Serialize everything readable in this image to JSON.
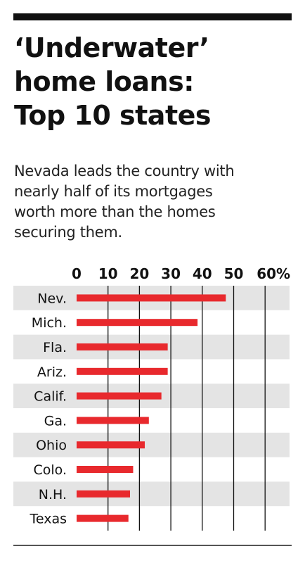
{
  "graphic": {
    "title_lines": [
      "‘Underwater’",
      "home loans:",
      "Top 10 states"
    ],
    "subtitle_lines": [
      "Nevada leads the country with",
      "nearly half of its mortgages",
      "worth more than the homes",
      "securing them."
    ]
  },
  "colors": {
    "bar": "#e8292d",
    "band": "#e4e4e4",
    "grid": "#111111",
    "text": "#111111"
  },
  "chart_data": {
    "type": "bar",
    "orientation": "horizontal",
    "title": "‘Underwater’ home loans: Top 10 states",
    "subtitle": "Nevada leads the country with nearly half of its mortgages worth more than the homes securing them.",
    "xlabel": "",
    "ylabel": "",
    "x_ticks": [
      "0",
      "10",
      "20",
      "30",
      "40",
      "50",
      "60%"
    ],
    "x_tick_values": [
      0,
      10,
      20,
      30,
      40,
      50,
      60
    ],
    "xlim": [
      0,
      60
    ],
    "grid": true,
    "categories": [
      "Nev.",
      "Mich.",
      "Fla.",
      "Ariz.",
      "Calif.",
      "Ga.",
      "Ohio",
      "Colo.",
      "N.H.",
      "Texas"
    ],
    "values": [
      47.5,
      38.5,
      29,
      29,
      27,
      23,
      21.7,
      18,
      17,
      16.5
    ]
  }
}
